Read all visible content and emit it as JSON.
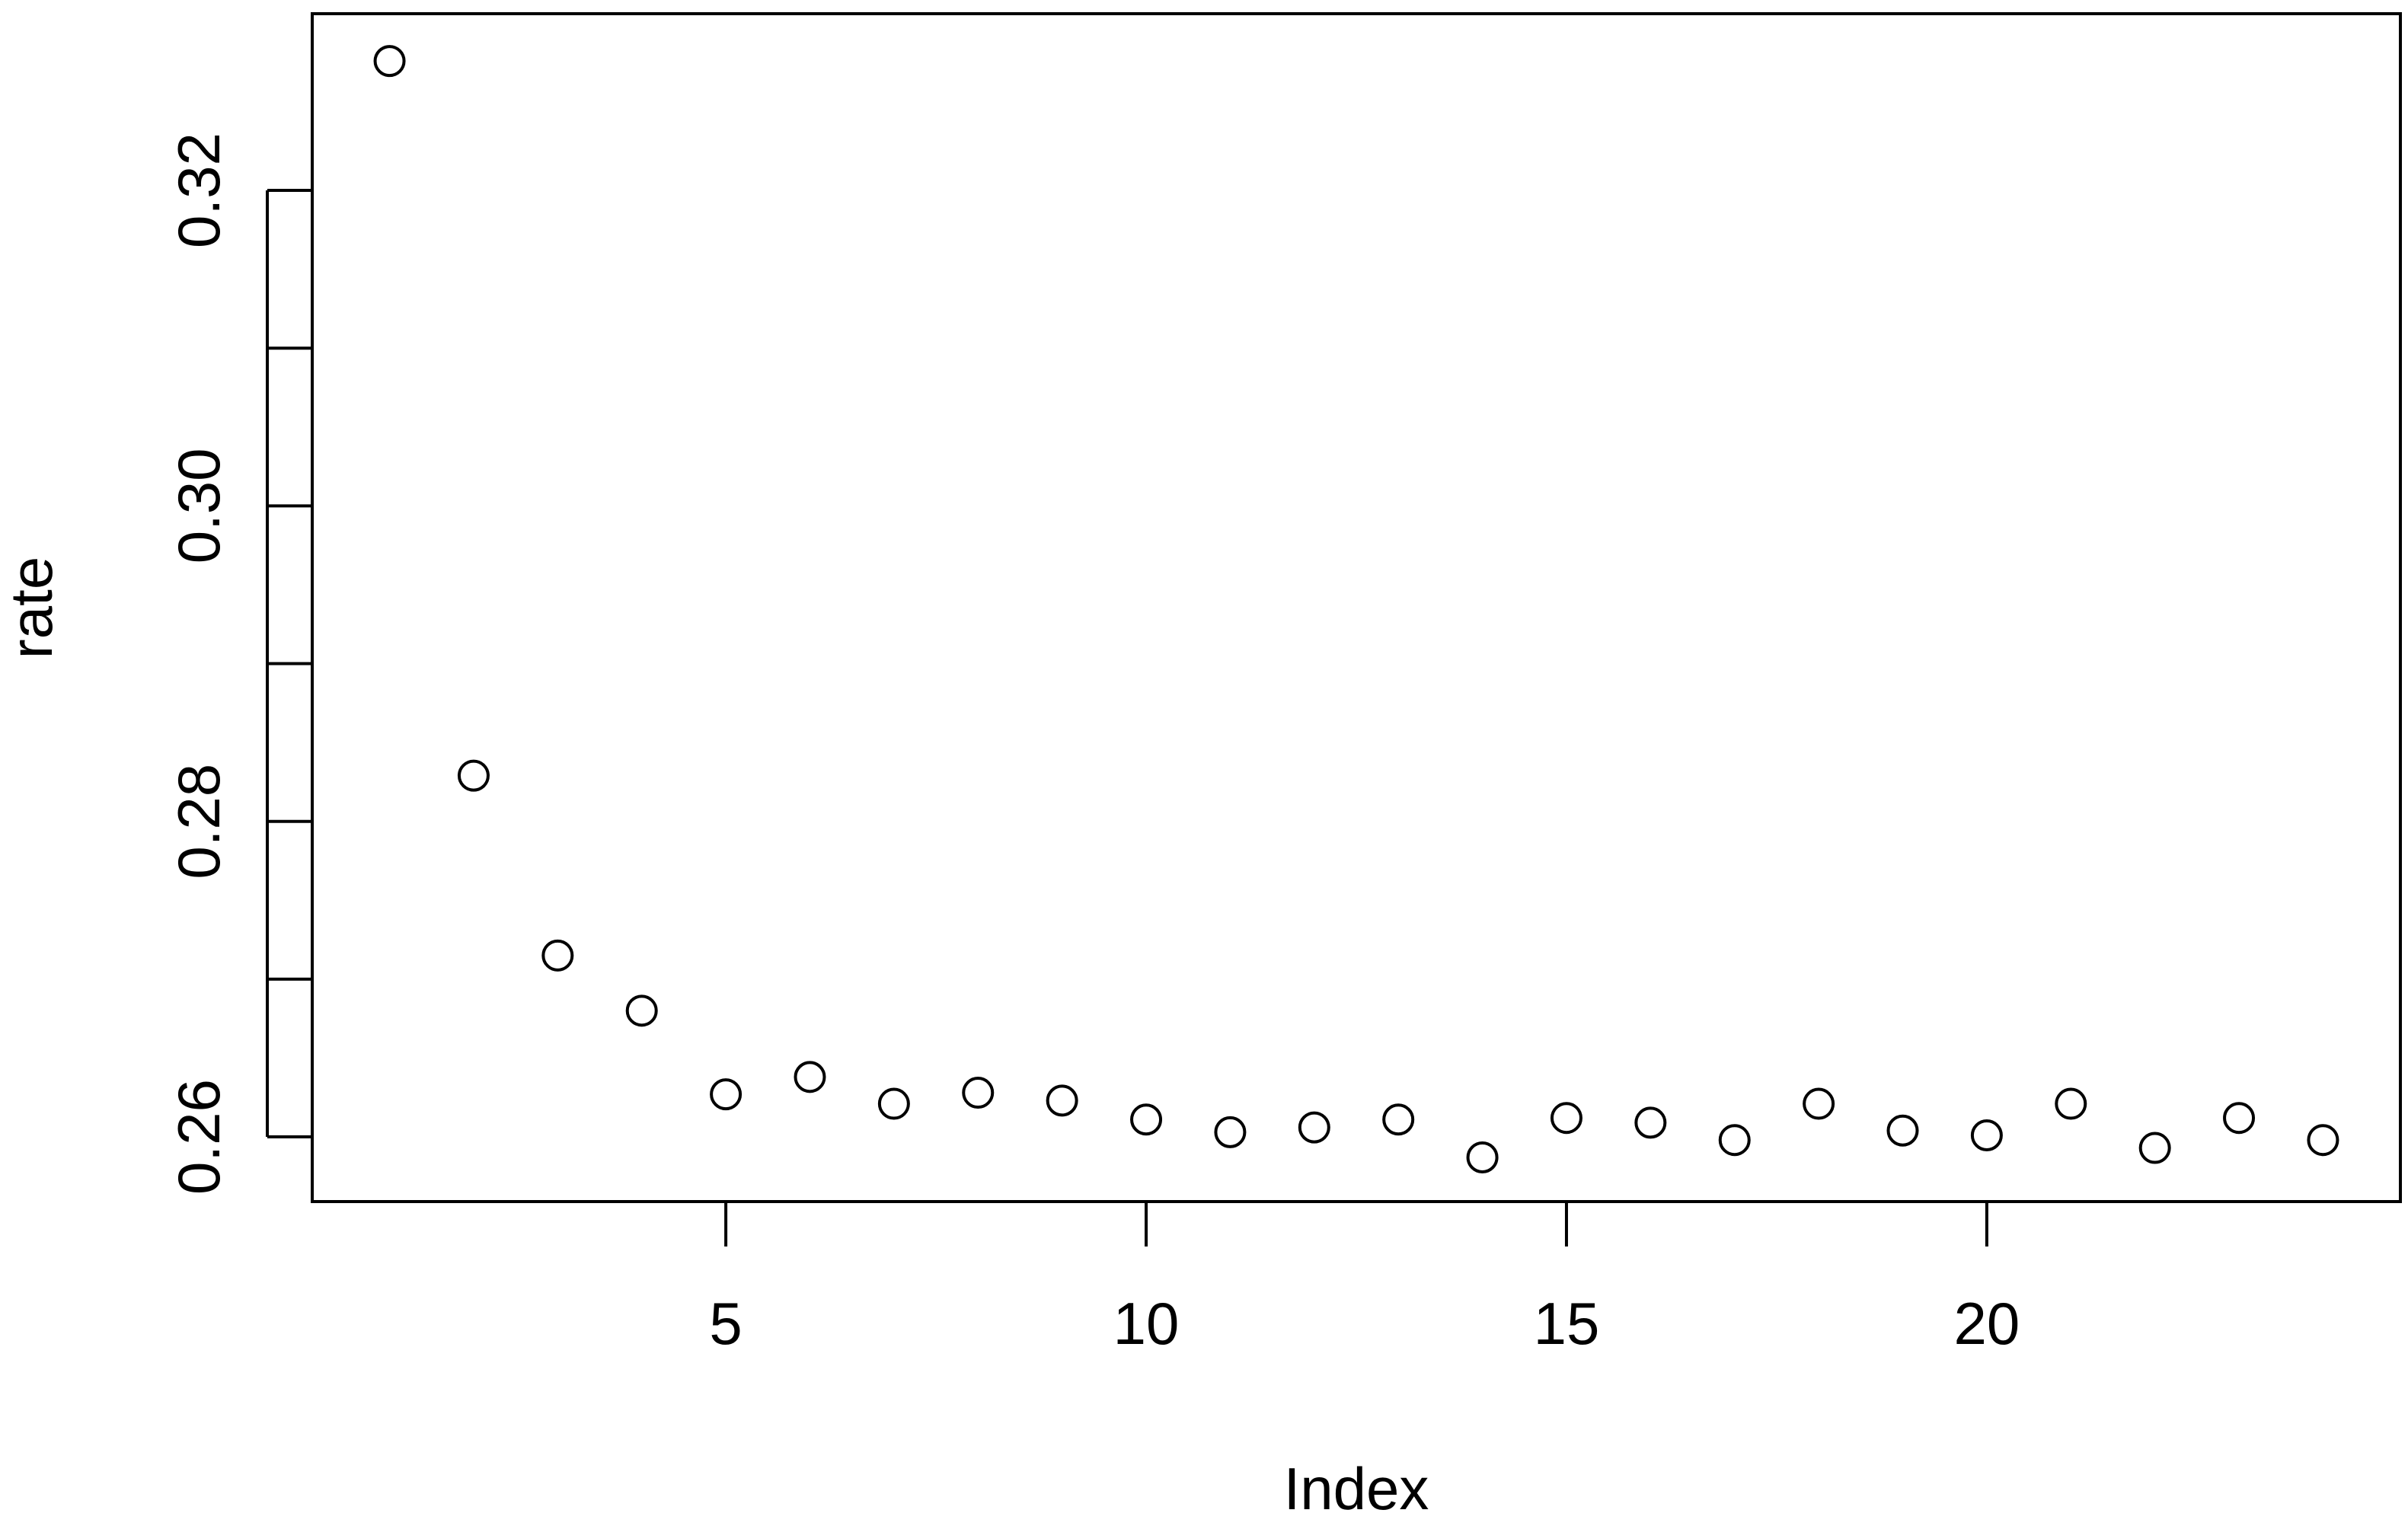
{
  "chart_data": {
    "type": "scatter",
    "title": "",
    "xlabel": "Index",
    "ylabel": "rate",
    "x": [
      1,
      2,
      3,
      4,
      5,
      6,
      7,
      8,
      9,
      10,
      11,
      12,
      13,
      14,
      15,
      16,
      17,
      18,
      19,
      20,
      21,
      22,
      23,
      24
    ],
    "y": [
      0.3282,
      0.2829,
      0.2715,
      0.268,
      0.2627,
      0.2638,
      0.2621,
      0.2628,
      0.2623,
      0.2611,
      0.2603,
      0.2606,
      0.2611,
      0.2587,
      0.2612,
      0.2609,
      0.2598,
      0.2621,
      0.2604,
      0.2601,
      0.2621,
      0.2593,
      0.2612,
      0.2598
    ],
    "xlim": [
      0.08,
      24.92
    ],
    "ylim": [
      0.2559,
      0.3312
    ],
    "xticks": [
      5,
      10,
      15,
      20
    ],
    "yticks": [
      0.26,
      0.27,
      0.28,
      0.29,
      0.3,
      0.31,
      0.32
    ],
    "ytick_labels": {
      "0.26": "0.26",
      "0.28": "0.28",
      "0.3": "0.30",
      "0.32": "0.32"
    },
    "grid": false,
    "marker": "open-circle",
    "colors": {
      "points": "#000000",
      "axes": "#000000",
      "background": "#ffffff"
    }
  }
}
